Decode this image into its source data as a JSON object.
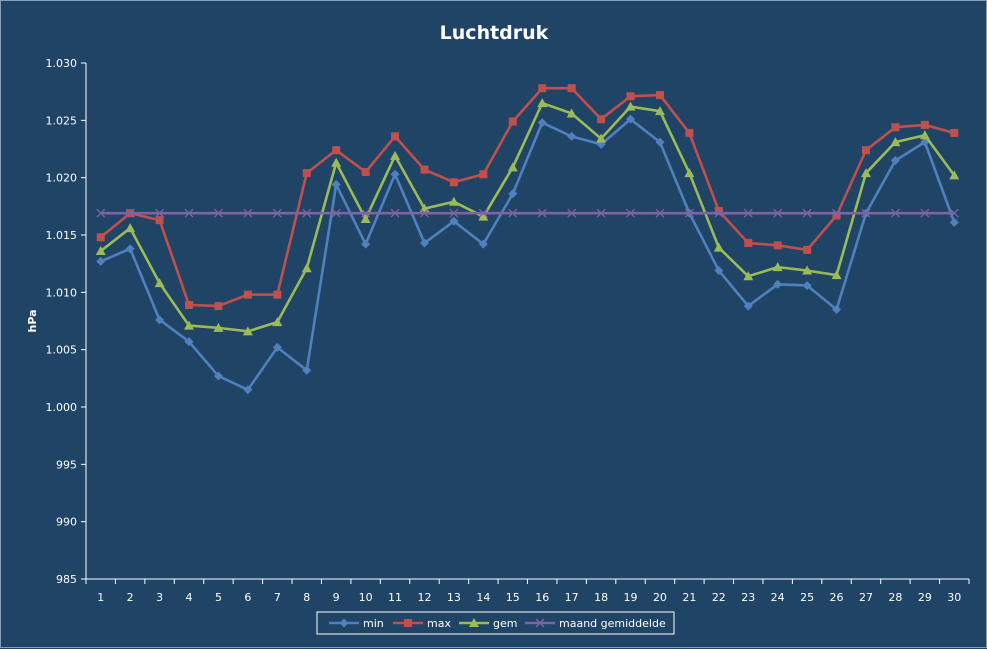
{
  "chart_data": {
    "type": "line",
    "title": "Luchtdruk",
    "xlabel": "",
    "ylabel": "hPa",
    "ylim": [
      985,
      1030
    ],
    "y_ticks": [
      985,
      990,
      995,
      1000,
      1005,
      1010,
      1015,
      1020,
      1025,
      1030
    ],
    "y_tick_labels": [
      "985",
      "990",
      "995",
      "1.000",
      "1.005",
      "1.010",
      "1.015",
      "1.020",
      "1.025",
      "1.030"
    ],
    "grid": false,
    "legend_position": "bottom",
    "categories": [
      "1",
      "2",
      "3",
      "4",
      "5",
      "6",
      "7",
      "8",
      "9",
      "10",
      "11",
      "12",
      "13",
      "14",
      "15",
      "16",
      "17",
      "18",
      "19",
      "20",
      "21",
      "22",
      "23",
      "24",
      "25",
      "26",
      "27",
      "28",
      "29",
      "30"
    ],
    "series": [
      {
        "name": "min",
        "color": "#4f81bd",
        "marker": "diamond",
        "values": [
          1012.7,
          1013.8,
          1007.6,
          1005.7,
          1002.7,
          1001.5,
          1005.2,
          1003.2,
          1019.4,
          1014.2,
          1020.3,
          1014.3,
          1016.2,
          1014.2,
          1018.6,
          1024.8,
          1023.6,
          1022.9,
          1025.1,
          1023.1,
          1016.9,
          1011.9,
          1008.8,
          1010.7,
          1010.6,
          1008.5,
          1016.9,
          1021.5,
          1023.1,
          1016.1
        ]
      },
      {
        "name": "max",
        "color": "#c0504d",
        "marker": "square",
        "values": [
          1014.8,
          1016.9,
          1016.3,
          1008.9,
          1008.8,
          1009.8,
          1009.8,
          1020.4,
          1022.4,
          1020.5,
          1023.6,
          1020.7,
          1019.6,
          1020.3,
          1024.9,
          1027.8,
          1027.8,
          1025.1,
          1027.1,
          1027.2,
          1023.9,
          1017.1,
          1014.3,
          1014.1,
          1013.7,
          1016.7,
          1022.4,
          1024.4,
          1024.6,
          1023.9
        ]
      },
      {
        "name": "gem",
        "color": "#9bbb59",
        "marker": "triangle",
        "values": [
          1013.6,
          1015.6,
          1010.8,
          1007.1,
          1006.9,
          1006.6,
          1007.4,
          1012.1,
          1021.3,
          1016.4,
          1021.9,
          1017.3,
          1017.9,
          1016.6,
          1020.9,
          1026.5,
          1025.6,
          1023.4,
          1026.2,
          1025.8,
          1020.4,
          1013.9,
          1011.4,
          1012.2,
          1011.9,
          1011.5,
          1020.4,
          1023.1,
          1023.7,
          1020.2
        ]
      },
      {
        "name": "maand gemiddelde",
        "color": "#8064a2",
        "marker": "x",
        "values": [
          1016.9,
          1016.9,
          1016.9,
          1016.9,
          1016.9,
          1016.9,
          1016.9,
          1016.9,
          1016.9,
          1016.9,
          1016.9,
          1016.9,
          1016.9,
          1016.9,
          1016.9,
          1016.9,
          1016.9,
          1016.9,
          1016.9,
          1016.9,
          1016.9,
          1016.9,
          1016.9,
          1016.9,
          1016.9,
          1016.9,
          1016.9,
          1016.9,
          1016.9,
          1016.9
        ]
      }
    ]
  },
  "colors": {
    "background": "#1f4466",
    "axis": "#ffffff",
    "legend_background": "#1f4466",
    "legend_border": "#ffffff"
  }
}
